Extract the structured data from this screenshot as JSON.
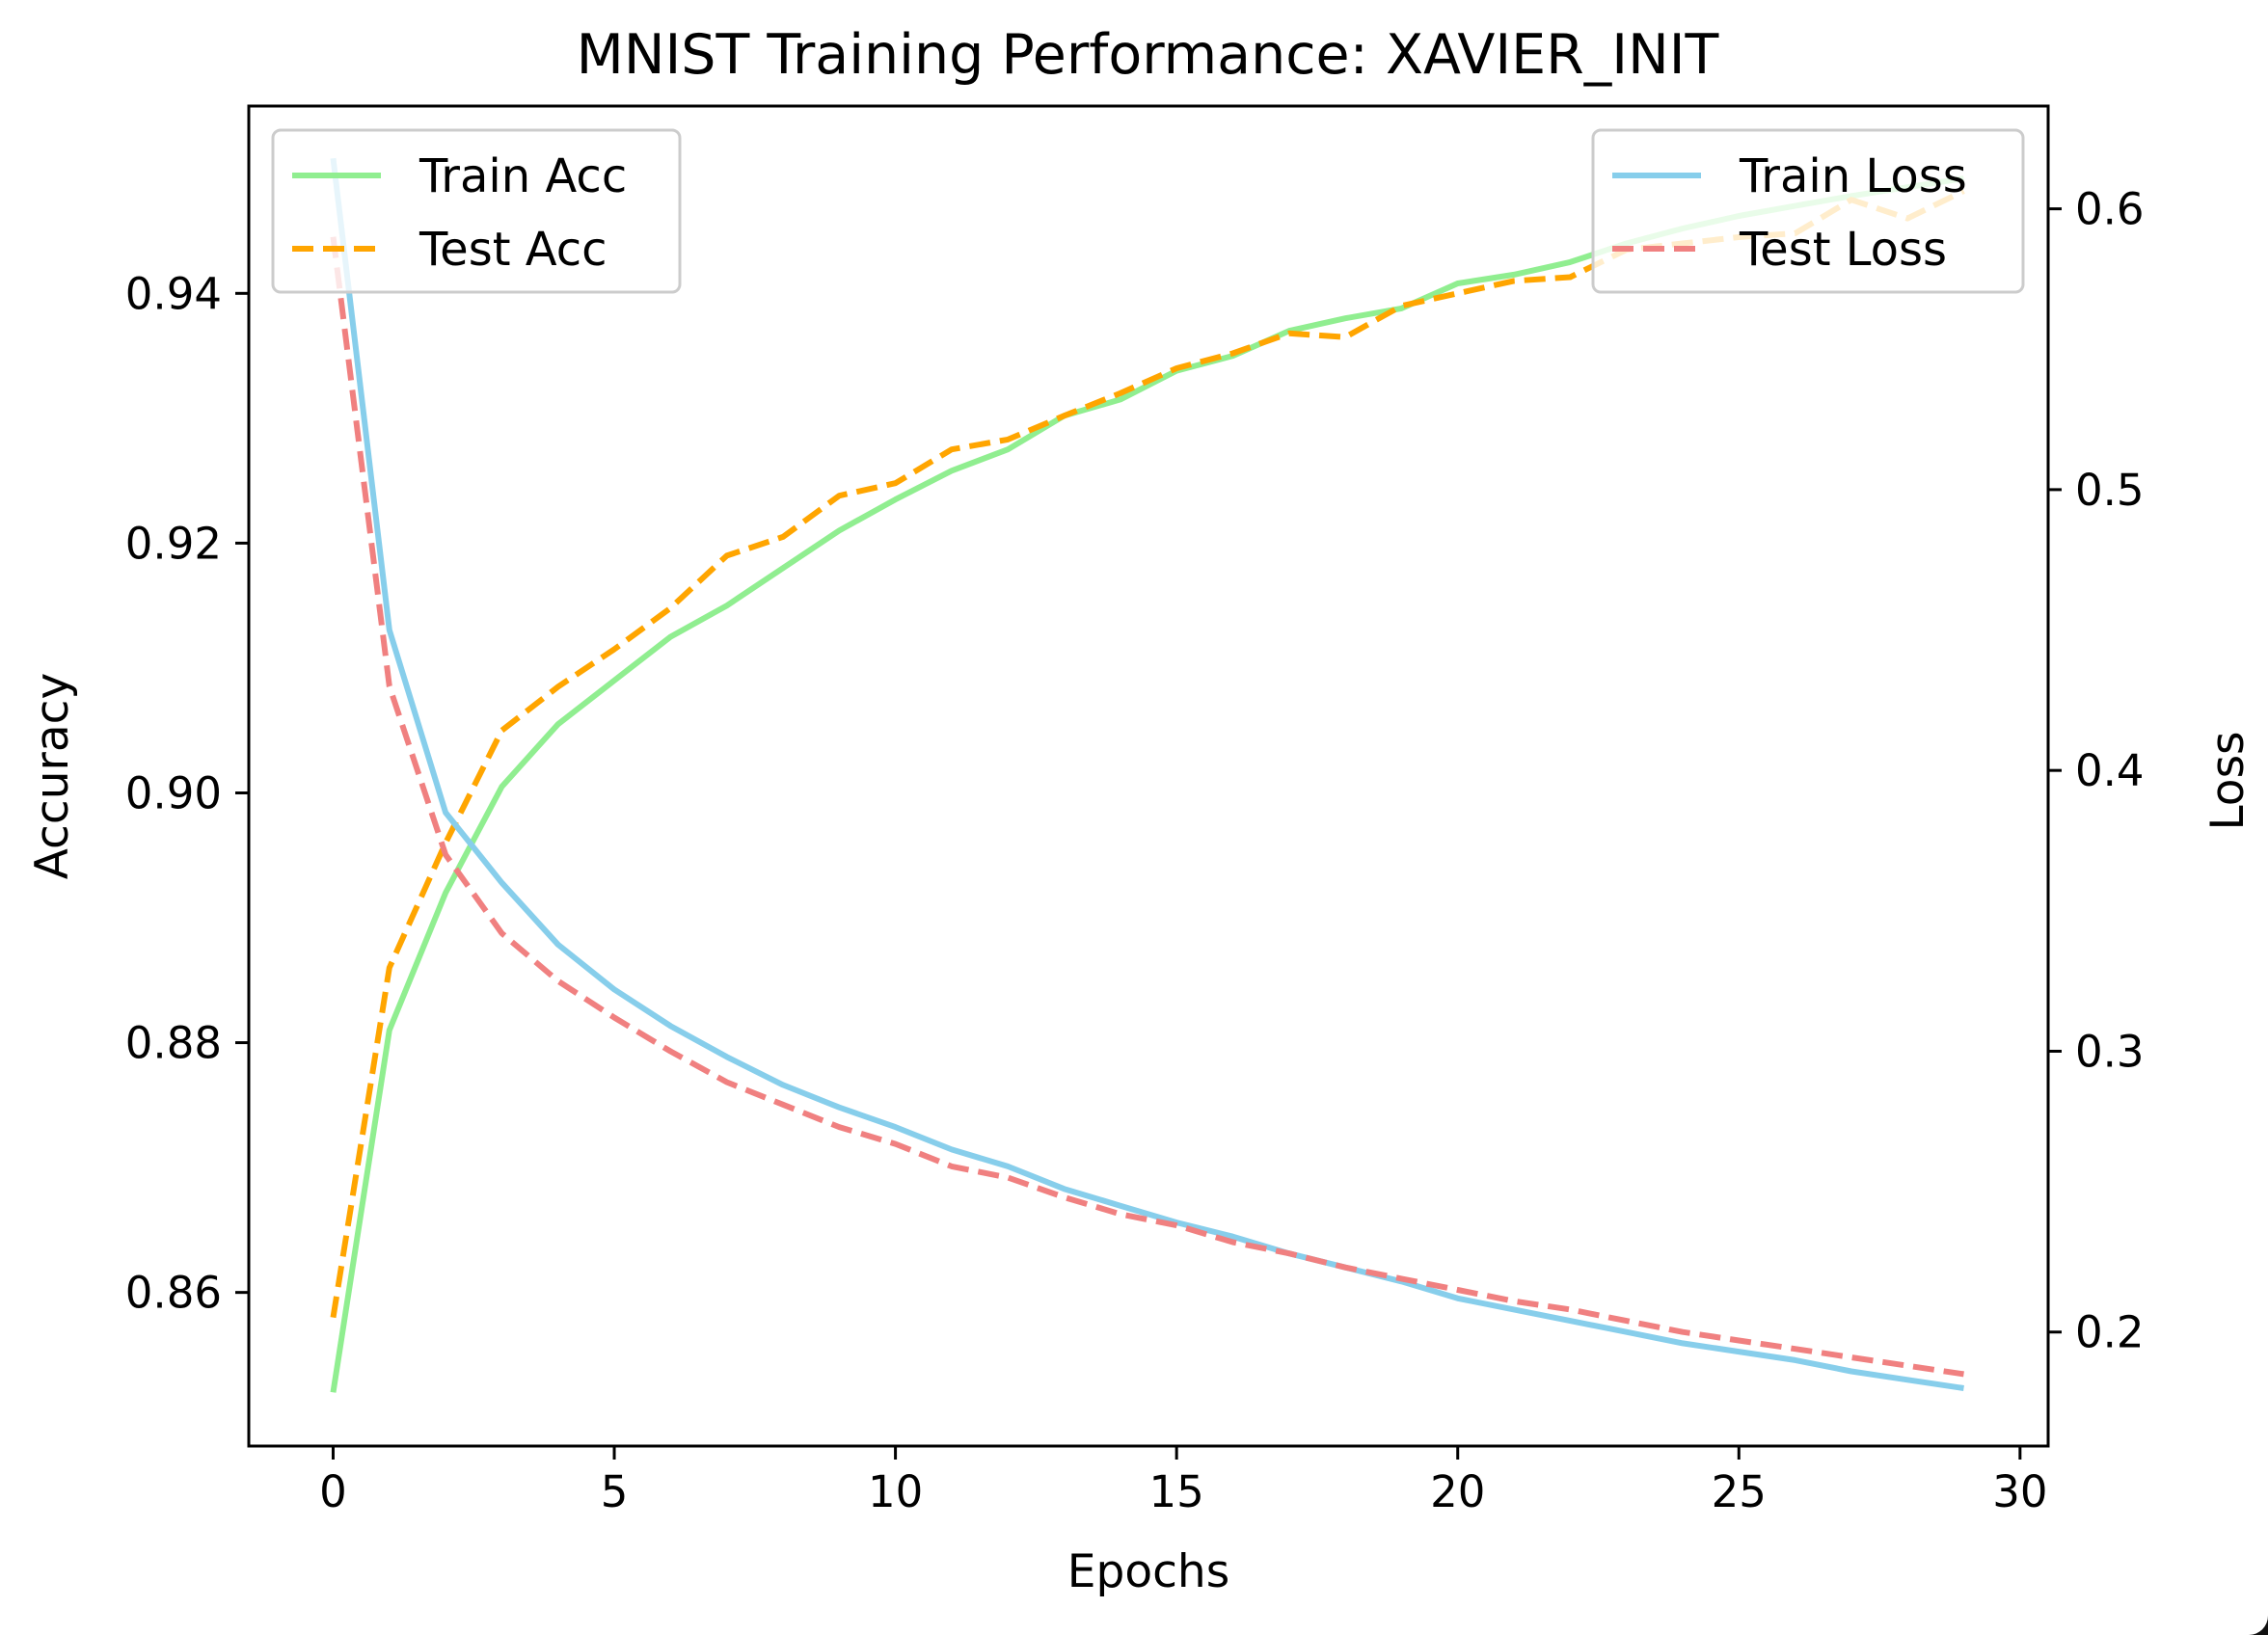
{
  "chart_data": {
    "type": "line",
    "title": "MNIST Training Performance: XAVIER_INIT",
    "xlabel": "Epochs",
    "ylabel": "Accuracy",
    "ylabel_right": "Loss",
    "xlim": [
      -1.5,
      30.5
    ],
    "ylim": [
      0.8477,
      0.955
    ],
    "ylim_right": [
      0.1594,
      0.6366
    ],
    "x_ticks": [
      0,
      5,
      10,
      15,
      20,
      25,
      30
    ],
    "y_ticks": [
      0.86,
      0.88,
      0.9,
      0.92,
      0.94
    ],
    "y_ticks_right": [
      0.2,
      0.3,
      0.4,
      0.5,
      0.6
    ],
    "grid": false,
    "x": [
      0,
      1,
      2,
      3,
      4,
      5,
      6,
      7,
      8,
      9,
      10,
      11,
      12,
      13,
      14,
      15,
      16,
      17,
      18,
      19,
      20,
      21,
      22,
      23,
      24,
      25,
      26,
      27,
      28,
      29
    ],
    "series": [
      {
        "name": "Train Acc",
        "axis": "left",
        "color": "#90EE90",
        "dash": "solid",
        "values": [
          0.852,
          0.881,
          0.892,
          0.9005,
          0.9055,
          0.909,
          0.9125,
          0.915,
          0.918,
          0.921,
          0.9235,
          0.9258,
          0.9275,
          0.9302,
          0.9315,
          0.9338,
          0.935,
          0.937,
          0.938,
          0.9388,
          0.9408,
          0.9415,
          0.9425,
          0.944,
          0.9452,
          0.9462,
          0.947,
          0.9478,
          0.9485,
          0.9492
        ]
      },
      {
        "name": "Test Acc",
        "axis": "left",
        "color": "#FFA500",
        "dash": "dashed",
        "values": [
          0.858,
          0.886,
          0.896,
          0.905,
          0.9085,
          0.9115,
          0.9148,
          0.919,
          0.9205,
          0.9238,
          0.9248,
          0.9275,
          0.9283,
          0.9302,
          0.932,
          0.934,
          0.9352,
          0.9368,
          0.9365,
          0.939,
          0.94,
          0.941,
          0.9413,
          0.9435,
          0.944,
          0.9445,
          0.9448,
          0.9475,
          0.946,
          0.9482
        ]
      },
      {
        "name": "Train Loss",
        "axis": "right",
        "color": "#87CEEB",
        "dash": "solid",
        "values": [
          0.618,
          0.45,
          0.385,
          0.36,
          0.338,
          0.322,
          0.309,
          0.298,
          0.288,
          0.28,
          0.273,
          0.265,
          0.259,
          0.251,
          0.245,
          0.239,
          0.234,
          0.228,
          0.223,
          0.218,
          0.212,
          0.208,
          0.204,
          0.2,
          0.196,
          0.193,
          0.19,
          0.186,
          0.183,
          0.18
        ]
      },
      {
        "name": "Test Loss",
        "axis": "right",
        "color": "#F08080",
        "dash": "dashed",
        "values": [
          0.59,
          0.43,
          0.37,
          0.342,
          0.325,
          0.312,
          0.3,
          0.289,
          0.281,
          0.273,
          0.267,
          0.259,
          0.255,
          0.248,
          0.242,
          0.238,
          0.232,
          0.228,
          0.223,
          0.219,
          0.215,
          0.211,
          0.208,
          0.204,
          0.2,
          0.197,
          0.194,
          0.191,
          0.188,
          0.185
        ]
      }
    ],
    "legends": [
      {
        "placement": "upper left",
        "entries": [
          "Train Acc",
          "Test Acc"
        ]
      },
      {
        "placement": "upper right",
        "entries": [
          "Train Loss",
          "Test Loss"
        ]
      }
    ]
  }
}
